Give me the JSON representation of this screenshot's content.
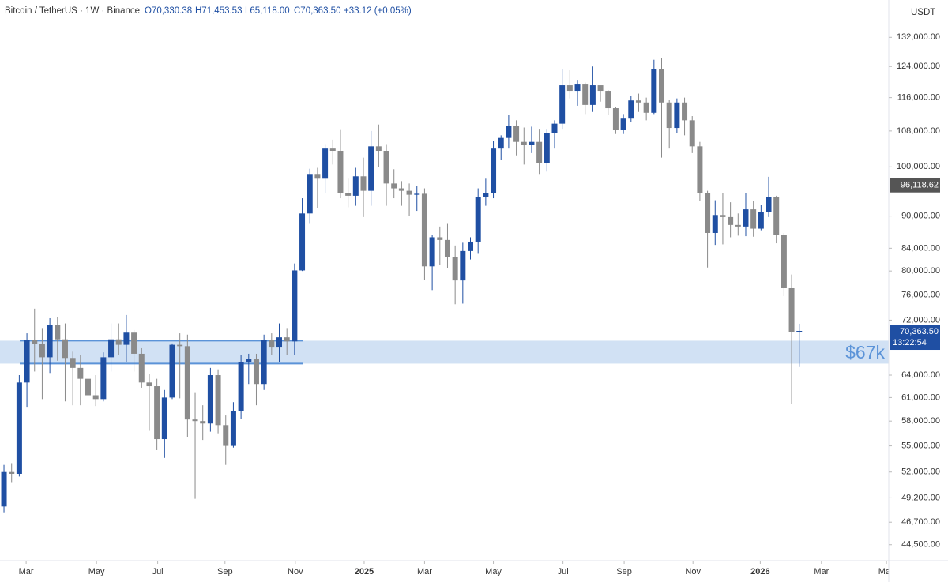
{
  "chart_data": {
    "type": "candlestick",
    "title": "Bitcoin / TetherUS · 1W · Binance",
    "ohlc_labels": [
      "O70,330.38",
      "H71,453.53",
      "L65,118.00",
      "C70,363.50",
      "+33.12 (+0.05%)"
    ],
    "currency": "USDT",
    "up_color": "#1f4fa3",
    "down_color": "#8a8a8a",
    "log_scale": true,
    "categories": [
      null,
      null,
      null,
      null,
      null,
      null,
      null,
      null,
      null,
      null,
      null,
      null,
      null,
      null,
      null,
      null,
      null,
      null,
      null,
      null,
      null,
      null,
      null,
      null,
      null,
      null,
      null,
      null,
      null,
      null,
      null,
      null,
      null,
      null,
      null,
      null,
      null,
      null,
      null,
      null,
      null,
      null,
      null,
      null,
      null,
      null,
      null,
      null,
      null,
      null,
      null,
      null,
      null,
      null,
      null,
      null,
      null,
      null,
      null,
      null,
      null,
      null,
      null,
      null,
      null,
      null,
      null,
      null,
      null,
      null,
      null,
      null,
      null,
      null,
      null,
      null,
      null,
      null,
      null,
      null,
      null,
      null,
      null,
      null,
      null,
      null,
      null,
      null,
      null,
      null,
      null,
      null,
      null,
      null,
      null,
      null,
      null,
      null,
      null,
      null,
      null,
      null,
      null,
      null,
      null
    ],
    "open": [
      48300,
      52000,
      51800,
      63000,
      69000,
      68400,
      66500,
      71300,
      69100,
      66400,
      65000,
      63500,
      61300,
      60800,
      66500,
      69100,
      68300,
      70100,
      67000,
      63000,
      62500,
      55800,
      61000,
      68300,
      68100,
      58200,
      58000,
      57700,
      64000,
      57500,
      55000,
      59300,
      65800,
      66300,
      62800,
      69000,
      67900,
      69400,
      68800,
      80100,
      90500,
      98500,
      97500,
      104000,
      103500,
      94500,
      94000,
      98000,
      95000,
      104500,
      103500,
      96500,
      95500,
      95000,
      94200,
      94400,
      80800,
      86000,
      85500,
      82500,
      78400,
      83500,
      85200,
      93700,
      94500,
      104000,
      106400,
      109100,
      105500,
      104800,
      105500,
      100800,
      107500,
      109700,
      119100,
      117700,
      119300,
      114200,
      119100,
      117700,
      113400,
      108200,
      110900,
      115300,
      114800,
      112300,
      123400,
      114800,
      108700,
      114800,
      110500,
      104500,
      94500,
      86800,
      90200,
      89800,
      88300,
      88000,
      91300,
      87600,
      90800,
      93700,
      86500,
      77100,
      70330.38
    ],
    "high": [
      52800,
      53000,
      64000,
      70000,
      73800,
      70800,
      72300,
      72500,
      71500,
      67300,
      66800,
      67000,
      64000,
      67200,
      71500,
      71500,
      72800,
      70500,
      67800,
      64200,
      63500,
      62000,
      68500,
      70000,
      69800,
      61600,
      60000,
      65000,
      64800,
      58700,
      60400,
      66800,
      67000,
      67000,
      69800,
      70000,
      71500,
      70800,
      81300,
      93500,
      99600,
      99800,
      105000,
      106000,
      108400,
      97500,
      99800,
      102000,
      108000,
      109500,
      105000,
      99500,
      97000,
      96500,
      96000,
      95500,
      86500,
      88000,
      88500,
      84500,
      85000,
      86000,
      95500,
      97500,
      105800,
      107000,
      111800,
      110500,
      108800,
      109000,
      108500,
      108500,
      110500,
      123200,
      123000,
      120500,
      119800,
      124000,
      118500,
      117900,
      113700,
      112000,
      116500,
      117000,
      116000,
      125800,
      126200,
      115500,
      115800,
      116000,
      111500,
      105500,
      95000,
      93100,
      94500,
      92700,
      90500,
      94500,
      93000,
      92200,
      97900,
      94000,
      86800,
      79400,
      71453.53
    ],
    "low": [
      47700,
      50800,
      51500,
      59700,
      64500,
      60800,
      64300,
      66000,
      60500,
      60000,
      60000,
      56600,
      59900,
      60500,
      64500,
      66800,
      65800,
      64500,
      62300,
      56800,
      54500,
      53600,
      60800,
      60900,
      56000,
      49100,
      55700,
      56700,
      56500,
      52800,
      54800,
      58300,
      62800,
      60000,
      62000,
      66800,
      65800,
      66800,
      66800,
      80000,
      88500,
      91500,
      94500,
      100500,
      93500,
      91700,
      92000,
      89800,
      92000,
      100000,
      92000,
      93500,
      92000,
      90000,
      91000,
      78500,
      76800,
      81000,
      80500,
      74500,
      74600,
      82000,
      83000,
      92000,
      93500,
      101500,
      104000,
      102500,
      100500,
      103000,
      98500,
      99000,
      104000,
      108500,
      115800,
      114000,
      112000,
      112500,
      115000,
      111800,
      107300,
      107300,
      110000,
      112500,
      110500,
      112000,
      102000,
      104000,
      107500,
      107000,
      103000,
      93000,
      80600,
      84600,
      84700,
      86000,
      86300,
      86200,
      86100,
      87300,
      89800,
      84900,
      75800,
      60200,
      65118.0
    ],
    "close": [
      52000,
      51800,
      63000,
      69000,
      68400,
      66500,
      71300,
      69100,
      66400,
      65000,
      63500,
      61300,
      60800,
      66500,
      69100,
      68300,
      70100,
      67000,
      63000,
      62500,
      55800,
      61000,
      68300,
      68100,
      58200,
      58000,
      57700,
      64000,
      57500,
      55000,
      59300,
      65800,
      66300,
      62800,
      69000,
      67900,
      69400,
      68800,
      80100,
      90500,
      98500,
      97500,
      104000,
      103500,
      94500,
      94000,
      98000,
      95000,
      104500,
      103500,
      96500,
      95500,
      95000,
      94200,
      94400,
      80800,
      86000,
      85500,
      82500,
      78400,
      83500,
      85200,
      93700,
      94500,
      104000,
      106400,
      109100,
      105500,
      104800,
      105500,
      100800,
      107500,
      109700,
      119100,
      117700,
      119300,
      114200,
      119100,
      117700,
      113400,
      108200,
      110900,
      115300,
      114800,
      112300,
      123400,
      114800,
      108700,
      114800,
      110500,
      104500,
      94500,
      86800,
      90200,
      89800,
      88300,
      88000,
      91300,
      87600,
      90800,
      93700,
      86500,
      77100,
      70200,
      70363.5
    ],
    "ylim": [
      43000,
      143000
    ],
    "yticks": [
      {
        "value": 44500,
        "label": "44,500.00"
      },
      {
        "value": 46700,
        "label": "46,700.00"
      },
      {
        "value": 49200,
        "label": "49,200.00"
      },
      {
        "value": 52000,
        "label": "52,000.00"
      },
      {
        "value": 55000,
        "label": "55,000.00"
      },
      {
        "value": 58000,
        "label": "58,000.00"
      },
      {
        "value": 61000,
        "label": "61,000.00"
      },
      {
        "value": 64000,
        "label": "64,000.00"
      },
      {
        "value": 72000,
        "label": "72,000.00"
      },
      {
        "value": 76000,
        "label": "76,000.00"
      },
      {
        "value": 80000,
        "label": "80,000.00"
      },
      {
        "value": 84000,
        "label": "84,000.00"
      },
      {
        "value": 90000,
        "label": "90,000.00"
      },
      {
        "value": 100000,
        "label": "100,000.00"
      },
      {
        "value": 108000,
        "label": "108,000.00"
      },
      {
        "value": 116000,
        "label": "116,000.00"
      },
      {
        "value": 124000,
        "label": "124,000.00"
      },
      {
        "value": 132000,
        "label": "132,000.00"
      }
    ],
    "xlim": [
      -0.52,
      115.7
    ],
    "xticks": [
      {
        "value": 2.9,
        "label": "Mar"
      },
      {
        "value": 12.1,
        "label": "May"
      },
      {
        "value": 20.1,
        "label": "Jul"
      },
      {
        "value": 28.9,
        "label": "Sep"
      },
      {
        "value": 38.1,
        "label": "Nov"
      },
      {
        "value": 47.1,
        "label": "2025"
      },
      {
        "value": 55.0,
        "label": "Mar"
      },
      {
        "value": 64.0,
        "label": "May"
      },
      {
        "value": 73.1,
        "label": "Jul"
      },
      {
        "value": 81.1,
        "label": "Sep"
      },
      {
        "value": 90.1,
        "label": "Nov"
      },
      {
        "value": 98.9,
        "label": "2026"
      },
      {
        "value": 106.9,
        "label": "Mar"
      },
      {
        "value": 115.4,
        "label": "May"
      }
    ],
    "zone": {
      "label": "$67k",
      "range": [
        65600,
        68900
      ],
      "color": "#5b93d8"
    },
    "last_price": {
      "value": 70363.5,
      "label": "70,363.50",
      "countdown": "13:22:54"
    },
    "marker": {
      "value": 96118.62,
      "label": "96,118.62"
    }
  }
}
